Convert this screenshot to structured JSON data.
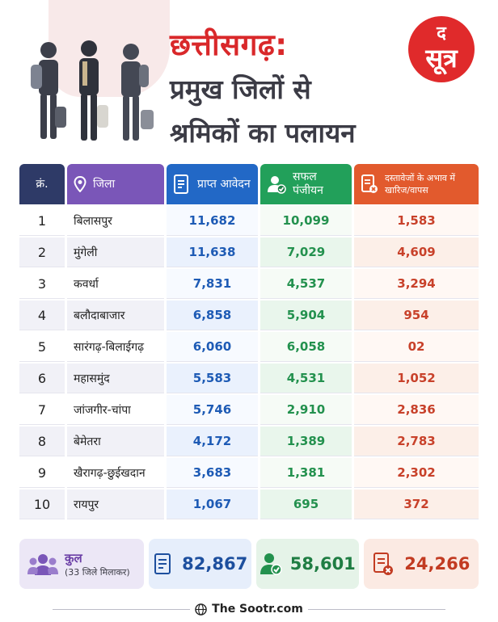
{
  "header": {
    "title_line1": "छत्तीसगढ़:",
    "title_line2": "प्रमुख जिलों से",
    "title_line3": "श्रमिकों का पलायन",
    "logo_top": "द",
    "logo_bottom": "सूत्र"
  },
  "columns": {
    "serial": "क्रं.",
    "district": "जिला",
    "applications": "प्राप्त आवेदन",
    "registered": "सफल पंजीयन",
    "rejected": "दस्तावेजों के अभाव में खारिज/वापस"
  },
  "rows": [
    {
      "no": "1",
      "district": "बिलासपुर",
      "applications": "11,682",
      "registered": "10,099",
      "rejected": "1,583"
    },
    {
      "no": "2",
      "district": "मुंगेली",
      "applications": "11,638",
      "registered": "7,029",
      "rejected": "4,609"
    },
    {
      "no": "3",
      "district": "कवर्धा",
      "applications": "7,831",
      "registered": "4,537",
      "rejected": "3,294"
    },
    {
      "no": "4",
      "district": "बलौदाबाजार",
      "applications": "6,858",
      "registered": "5,904",
      "rejected": "954"
    },
    {
      "no": "5",
      "district": "सारंगढ़-बिलाईगढ़",
      "applications": "6,060",
      "registered": "6,058",
      "rejected": "02"
    },
    {
      "no": "6",
      "district": "महासमुंद",
      "applications": "5,583",
      "registered": "4,531",
      "rejected": "1,052"
    },
    {
      "no": "7",
      "district": "जांजगीर-चांपा",
      "applications": "5,746",
      "registered": "2,910",
      "rejected": "2,836"
    },
    {
      "no": "8",
      "district": "बेमेतरा",
      "applications": "4,172",
      "registered": "1,389",
      "rejected": "2,783"
    },
    {
      "no": "9",
      "district": "खैरागढ़-छुईखदान",
      "applications": "3,683",
      "registered": "1,381",
      "rejected": "2,302"
    },
    {
      "no": "10",
      "district": "रायपुर",
      "applications": "1,067",
      "registered": "695",
      "rejected": "372"
    }
  ],
  "totals": {
    "label": "कुल",
    "sublabel": "(33 जिले मिलाकर)",
    "applications": "82,867",
    "registered": "58,601",
    "rejected": "24,266"
  },
  "footer": {
    "brand": "The Sootr.com"
  },
  "colors": {
    "title_red": "#d9282a",
    "district_purple": "#7a56b8",
    "applications_blue": "#2268c6",
    "registered_green": "#22a05a",
    "rejected_orange": "#e25a2d"
  },
  "icons": [
    "people-icon",
    "location-pin-icon",
    "document-icon",
    "user-check-icon",
    "document-reject-icon",
    "group-icon",
    "globe-icon"
  ]
}
